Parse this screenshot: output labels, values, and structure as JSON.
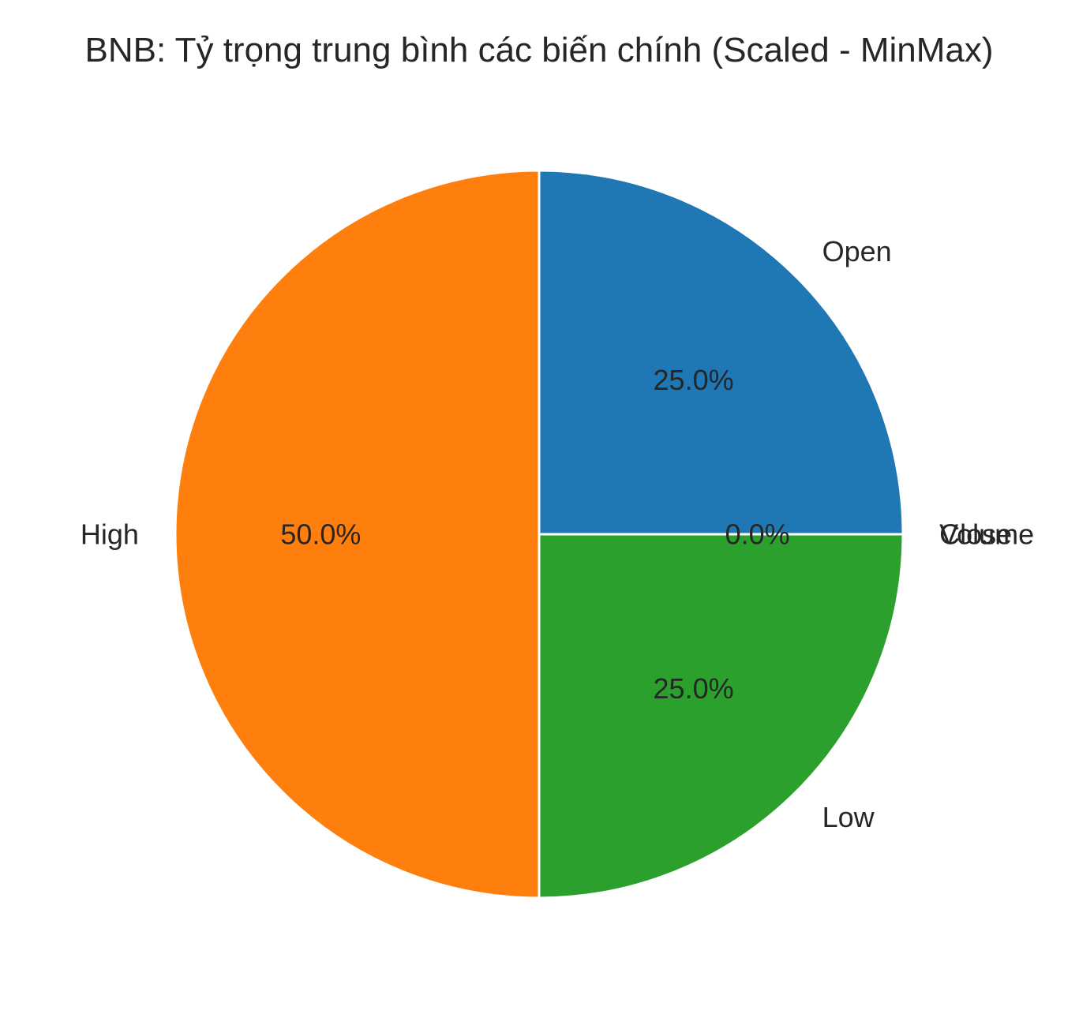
{
  "chart_data": {
    "type": "pie",
    "title": "BNB: Tỷ trọng trung bình các biến chính (Scaled - MinMax)",
    "start_angle_deg": 0,
    "direction": "counterclockwise",
    "slices": [
      {
        "label": "Close",
        "value": 0.0,
        "pct_label": "0.0%",
        "color": "#d62728"
      },
      {
        "label": "Open",
        "value": 25.0,
        "pct_label": "25.0%",
        "color": "#1f77b4"
      },
      {
        "label": "High",
        "value": 50.0,
        "pct_label": "50.0%",
        "color": "#ff7f0e"
      },
      {
        "label": "Low",
        "value": 25.0,
        "pct_label": "25.0%",
        "color": "#2ca02c"
      },
      {
        "label": "Volume",
        "value": 0.0,
        "pct_label": "",
        "color": "#9467bd"
      }
    ]
  }
}
